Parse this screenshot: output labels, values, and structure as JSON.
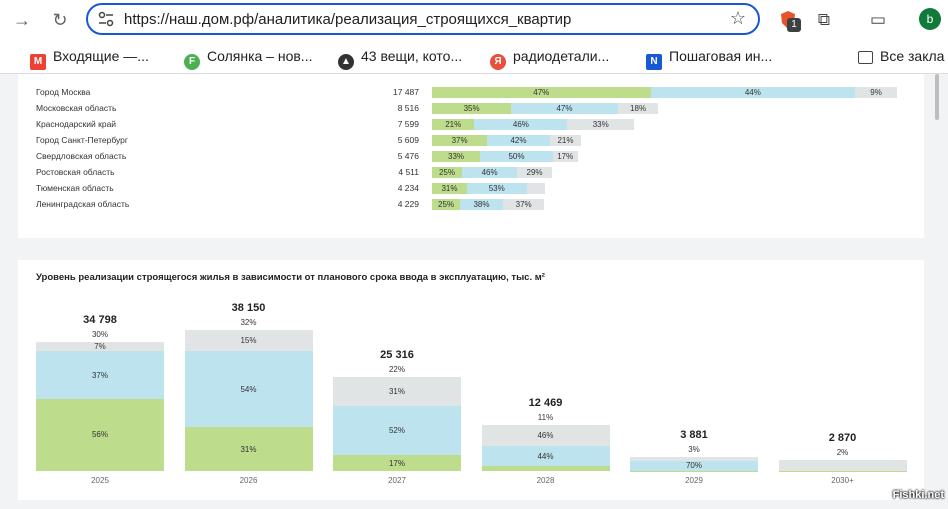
{
  "browser": {
    "url": "https://наш.дом.рф/аналитика/реализация_строящихся_квартир",
    "extension_badge": "1",
    "avatar_letter": "b",
    "bookmarks": [
      "Входящие —...",
      "Солянка – нов...",
      "43 вещи, кото...",
      "радиодетали...",
      "Пошаговая ин...",
      "Все закла"
    ]
  },
  "region_chart": {
    "type": "bar",
    "rows": [
      {
        "name": "Город Москва",
        "total": "17 487",
        "value": 17487,
        "shares": [
          47,
          44,
          9
        ]
      },
      {
        "name": "Московская область",
        "total": "8 516",
        "value": 8516,
        "shares": [
          35,
          47,
          18
        ]
      },
      {
        "name": "Краснодарский край",
        "total": "7 599",
        "value": 7599,
        "shares": [
          21,
          46,
          33
        ]
      },
      {
        "name": "Город Санкт-Петербург",
        "total": "5 609",
        "value": 5609,
        "shares": [
          37,
          42,
          21
        ]
      },
      {
        "name": "Свердловская область",
        "total": "5 476",
        "value": 5476,
        "shares": [
          33,
          50,
          17
        ]
      },
      {
        "name": "Ростовская область",
        "total": "4 511",
        "value": 4511,
        "shares": [
          25,
          46,
          29
        ]
      },
      {
        "name": "Тюменская область",
        "total": "4 234",
        "value": 4234,
        "shares": [
          31,
          53,
          16
        ]
      },
      {
        "name": "Ленинградская область",
        "total": "4 229",
        "value": 4229,
        "shares": [
          25,
          38,
          37
        ]
      }
    ],
    "shown_labels": [
      [
        "47%",
        "44%",
        "9%"
      ],
      [
        "35%",
        "47%",
        "18%"
      ],
      [
        "21%",
        "46%",
        "33%"
      ],
      [
        "37%",
        "42%",
        "21%"
      ],
      [
        "33%",
        "50%",
        "17%"
      ],
      [
        "25%",
        "46%",
        "29%"
      ],
      [
        "31%",
        "53%",
        ""
      ],
      [
        "25%",
        "38%",
        "37%"
      ]
    ]
  },
  "colors": {
    "green": "#bddc8c",
    "blue": "#bde3ef",
    "gray": "#e1e4e5"
  },
  "chart_data": {
    "type": "bar",
    "title": "Уровень реализации строящегося жилья в зависимости от планового срока ввода в эксплуатацию, тыс. м²",
    "categories": [
      "2025",
      "2026",
      "2027",
      "2028",
      "2029",
      "2030+"
    ],
    "totals": [
      34798,
      38150,
      25316,
      12469,
      3881,
      2870
    ],
    "total_labels": [
      "34 798",
      "38 150",
      "25 316",
      "12 469",
      "3 881",
      "2 870"
    ],
    "top_pct_labels": [
      "30%",
      "32%",
      "22%",
      "11%",
      "3%",
      "2%"
    ],
    "series": [
      {
        "values": [
          56,
          31,
          17,
          10,
          3,
          2
        ],
        "labels": [
          "56%",
          "31%",
          "17%",
          "",
          "",
          ""
        ]
      },
      {
        "values": [
          37,
          54,
          52,
          44,
          70,
          0
        ],
        "labels": [
          "37%",
          "54%",
          "52%",
          "44%",
          "70%",
          ""
        ]
      },
      {
        "values": [
          7,
          15,
          31,
          46,
          27,
          98
        ],
        "labels": [
          "7%",
          "15%",
          "31%",
          "46%",
          "",
          ""
        ]
      }
    ]
  },
  "watermark": "Fishki.net"
}
